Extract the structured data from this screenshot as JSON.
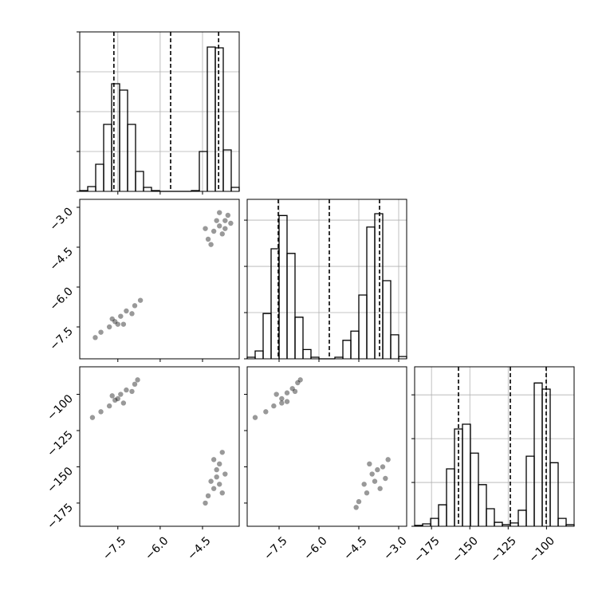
{
  "chart_data": [
    {
      "type": "histogram",
      "xlim": [
        -8.85,
        -3.2
      ],
      "ylim": [
        0,
        2000
      ],
      "xticks": [
        -7.5,
        -6.0,
        -4.5
      ],
      "yticks": [
        0,
        500,
        1000,
        1500,
        2000
      ],
      "grid": true,
      "color": "#000000",
      "bins": [
        -8.85,
        -8.5675,
        -8.285,
        -8.0025,
        -7.72,
        -7.4375,
        -7.155,
        -6.8725,
        -6.59,
        -6.3075,
        -6.025,
        -5.7425,
        -5.46,
        -5.1775,
        -4.895,
        -4.6125,
        -4.33,
        -4.0475,
        -3.765,
        -3.4825,
        -3.2
      ],
      "values": [
        10,
        60,
        340,
        840,
        1350,
        1270,
        840,
        250,
        50,
        10,
        0,
        0,
        0,
        0,
        10,
        500,
        1810,
        1800,
        520,
        50
      ],
      "quantiles": [
        -7.64,
        -5.63,
        -3.93
      ]
    },
    {
      "type": "scatter",
      "xlim": [
        -8.85,
        -3.2
      ],
      "ylim": [
        -8.7,
        -2.7
      ],
      "xticks": [
        -7.5,
        -6.0,
        -4.5
      ],
      "yticks": [
        {
          "value": -3.0,
          "label": "−3.0"
        },
        {
          "value": -4.5,
          "label": "−4.5"
        },
        {
          "value": -6.0,
          "label": "−6.0"
        },
        {
          "value": -7.5,
          "label": "−7.5"
        }
      ],
      "color": "#000000",
      "x": [
        -7.6,
        -7.4,
        -7.8,
        -8.1,
        -7.2,
        -6.9,
        -7.5,
        -7.7,
        -8.3,
        -7.0,
        -7.3,
        -6.7,
        -3.9,
        -4.1,
        -3.7,
        -4.3,
        -3.6,
        -4.0,
        -3.8,
        -4.4,
        -3.5,
        -3.9,
        -4.2,
        -3.7
      ],
      "y": [
        -7.3,
        -7.1,
        -7.5,
        -7.7,
        -6.9,
        -6.7,
        -7.4,
        -7.2,
        -7.9,
        -7.0,
        -7.4,
        -6.5,
        -3.7,
        -3.9,
        -3.5,
        -4.2,
        -3.3,
        -3.5,
        -4.0,
        -3.8,
        -3.6,
        -3.2,
        -4.4,
        -3.8
      ]
    },
    {
      "type": "histogram",
      "xlim": [
        -8.7,
        -2.7
      ],
      "ylim": [
        0,
        3450
      ],
      "xticks": [
        -7.5,
        -6.0,
        -4.5,
        -3.0
      ],
      "yticks": [
        0,
        1000,
        2000,
        3000
      ],
      "grid": true,
      "color": "#000000",
      "bins": [
        -8.7,
        -8.4,
        -8.1,
        -7.8,
        -7.5,
        -7.2,
        -6.9,
        -6.6,
        -6.3,
        -6.0,
        -5.7,
        -5.4,
        -5.1,
        -4.8,
        -4.5,
        -4.2,
        -3.9,
        -3.6,
        -3.3,
        -3.0,
        -2.7
      ],
      "values": [
        35,
        170,
        980,
        2380,
        3100,
        2280,
        900,
        200,
        35,
        0,
        0,
        35,
        400,
        600,
        1380,
        2850,
        3140,
        1690,
        520,
        50
      ],
      "quantiles": [
        -7.53,
        -5.61,
        -3.72
      ]
    },
    {
      "type": "scatter",
      "xlim": [
        -8.85,
        -3.2
      ],
      "ylim": [
        -191,
        -81
      ],
      "xticks": [
        {
          "value": -7.5,
          "label": "−7.5"
        },
        {
          "value": -6.0,
          "label": "−6.0"
        },
        {
          "value": -4.5,
          "label": "−4.5"
        }
      ],
      "yticks": [
        {
          "value": -100,
          "label": "−100"
        },
        {
          "value": -125,
          "label": "−125"
        },
        {
          "value": -150,
          "label": "−150"
        },
        {
          "value": -175,
          "label": "−175"
        }
      ],
      "color": "#000000",
      "x": [
        -7.6,
        -7.4,
        -7.8,
        -8.1,
        -7.2,
        -6.9,
        -7.5,
        -7.7,
        -8.4,
        -7.0,
        -7.3,
        -6.8,
        -4.0,
        -4.1,
        -3.9,
        -4.3,
        -3.8,
        -4.0,
        -4.2,
        -3.7,
        -4.4,
        -3.9,
        -4.1,
        -3.8
      ],
      "y": [
        -104,
        -100,
        -108,
        -112,
        -97,
        -93,
        -103,
        -101,
        -116,
        -98,
        -106,
        -90,
        -157,
        -165,
        -148,
        -170,
        -140,
        -152,
        -160,
        -155,
        -175,
        -162,
        -145,
        -168
      ]
    },
    {
      "type": "scatter",
      "xlim": [
        -8.7,
        -2.7
      ],
      "ylim": [
        -191,
        -81
      ],
      "xticks": [
        {
          "value": -7.5,
          "label": "−7.5"
        },
        {
          "value": -6.0,
          "label": "−6.0"
        },
        {
          "value": -4.5,
          "label": "−4.5"
        },
        {
          "value": -3.0,
          "label": "−3.0"
        }
      ],
      "yticks": [
        -100,
        -125,
        -150,
        -175
      ],
      "color": "#000000",
      "x": [
        -7.4,
        -7.2,
        -7.7,
        -8.0,
        -7.0,
        -6.8,
        -7.4,
        -7.6,
        -8.4,
        -6.9,
        -7.2,
        -6.7,
        -3.9,
        -4.2,
        -3.6,
        -4.5,
        -3.4,
        -4.0,
        -4.3,
        -3.7,
        -4.6,
        -3.8,
        -3.5,
        -4.1
      ],
      "y": [
        -103,
        -99,
        -108,
        -112,
        -96,
        -92,
        -106,
        -100,
        -116,
        -98,
        -105,
        -90,
        -160,
        -168,
        -150,
        -174,
        -145,
        -155,
        -162,
        -165,
        -178,
        -152,
        -158,
        -148
      ]
    },
    {
      "type": "histogram",
      "xlim": [
        -186,
        -82
      ],
      "ylim": [
        0,
        3640
      ],
      "xticks": [
        {
          "value": -175,
          "label": "−175"
        },
        {
          "value": -150,
          "label": "−150"
        },
        {
          "value": -125,
          "label": "−125"
        },
        {
          "value": -100,
          "label": "−100"
        }
      ],
      "yticks": [
        0,
        1000,
        2000,
        3000
      ],
      "grid": true,
      "color": "#000000",
      "bins": [
        -186,
        -180.8,
        -175.6,
        -170.4,
        -165.2,
        -160,
        -154.8,
        -149.6,
        -144.4,
        -139.2,
        -134,
        -128.8,
        -123.6,
        -118.4,
        -113.2,
        -108,
        -102.8,
        -97.6,
        -92.4,
        -87.2,
        -82
      ],
      "values": [
        20,
        55,
        180,
        490,
        1310,
        2220,
        2330,
        1670,
        950,
        400,
        90,
        35,
        75,
        365,
        1600,
        3270,
        3130,
        1450,
        180,
        35
      ],
      "quantiles": [
        -157.4,
        -123.6,
        -100.2
      ]
    }
  ]
}
